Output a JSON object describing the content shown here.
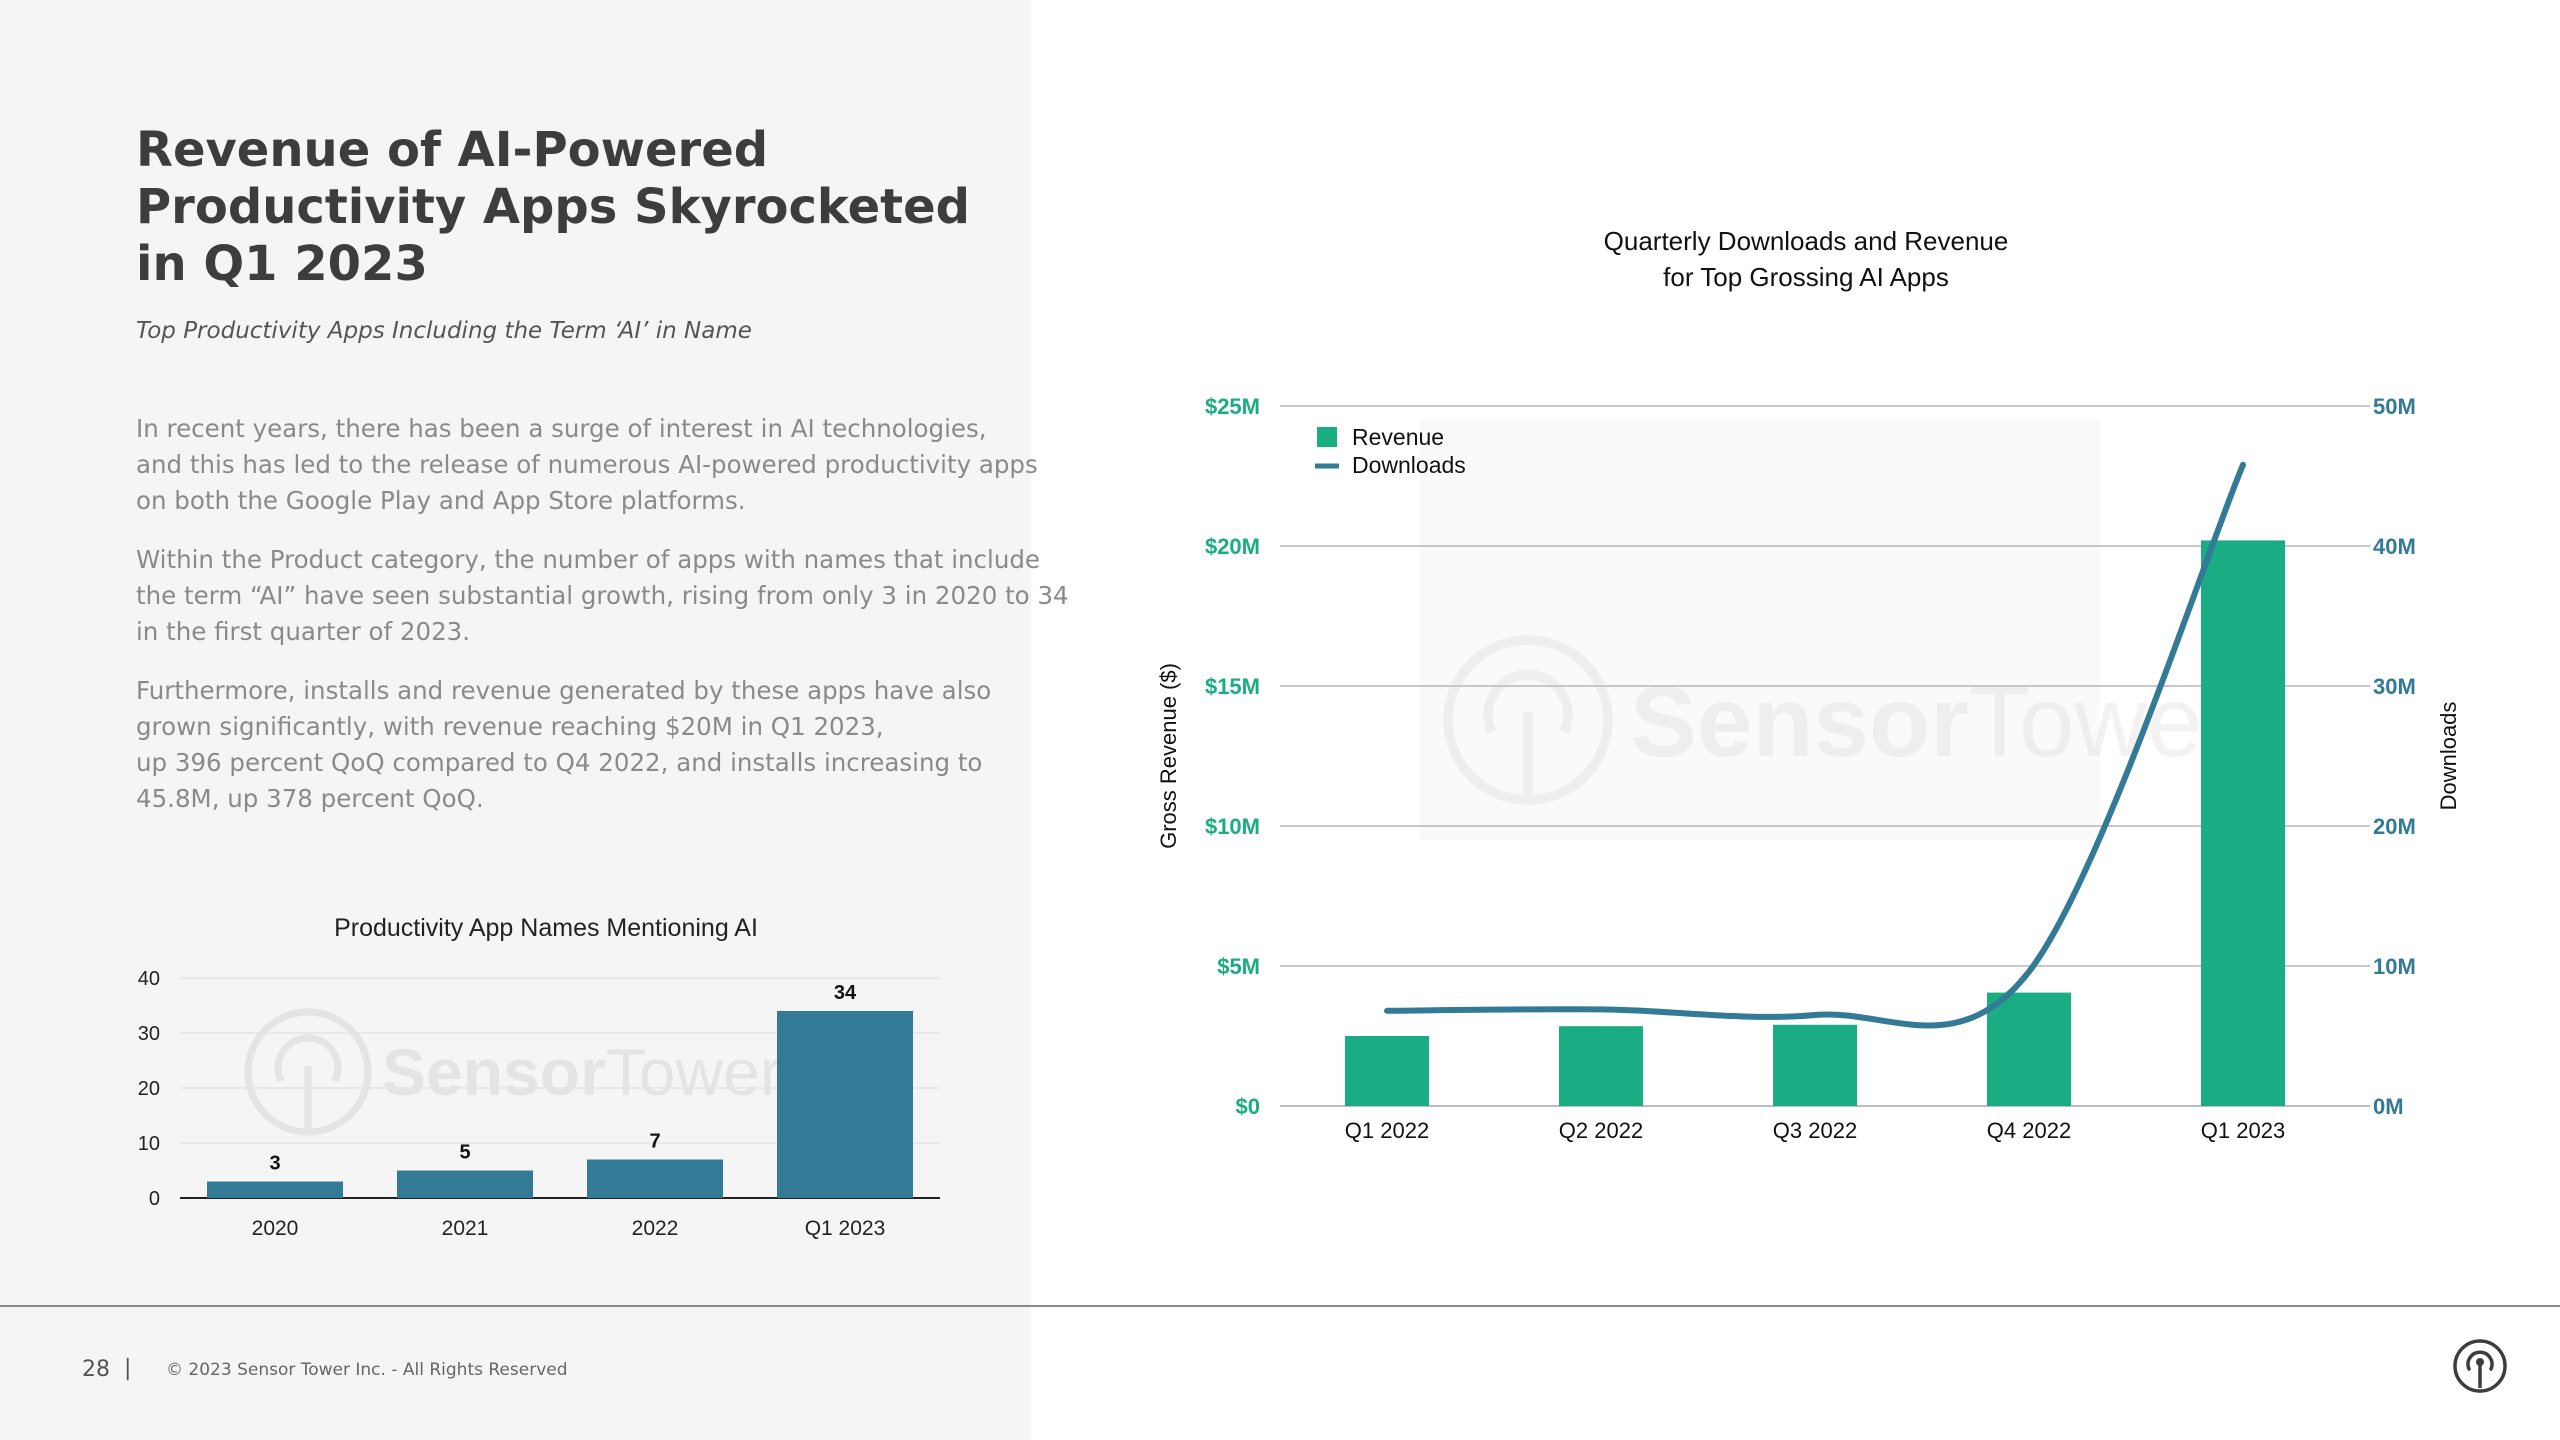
{
  "colors": {
    "accent_green": "#1aad84",
    "accent_blue": "#327a96",
    "text_dark": "#3d3d3d",
    "text_grey": "#8a8a8a"
  },
  "header": {
    "title_lines": [
      "Revenue of AI-Powered",
      "Productivity Apps Skyrocketed",
      "in Q1 2023"
    ],
    "subtitle": "Top Productivity Apps Including the Term ‘AI’ in Name"
  },
  "body": {
    "paragraphs": [
      [
        "In recent years, there has been a surge of interest in AI technologies,",
        "and this has led to the release of numerous AI-powered productivity apps",
        "on both the Google Play and App Store platforms."
      ],
      [
        "Within the Product category, the number of apps with names that include",
        "the term “AI” have seen substantial growth, rising from only 3 in 2020 to 34",
        "in the first quarter of 2023."
      ],
      [
        "Furthermore, installs and revenue generated by these apps have also",
        "grown significantly, with revenue reaching $20M in Q1 2023,",
        "up 396 percent QoQ compared to Q4 2022, and installs increasing to",
        "45.8M, up 378 percent QoQ."
      ]
    ]
  },
  "watermark": {
    "text_bold": "Sensor",
    "text_light": "Tower",
    "icon": "sensor-tower-logo-icon"
  },
  "chart_data": [
    {
      "type": "bar",
      "title": "Productivity App Names Mentioning AI",
      "categories": [
        "2020",
        "2021",
        "2022",
        "Q1 2023"
      ],
      "values": [
        3,
        5,
        7,
        34
      ],
      "data_labels": [
        "3",
        "5",
        "7",
        "34"
      ],
      "ylim": [
        0,
        40
      ],
      "yticks": [
        0,
        10,
        20,
        30,
        40
      ],
      "grid": true,
      "color": "#327a96"
    },
    {
      "type": "bar",
      "title_lines": [
        "Quarterly Downloads and Revenue",
        "for Top Grossing AI Apps"
      ],
      "categories": [
        "Q1 2022",
        "Q2 2022",
        "Q3 2022",
        "Q4 2022",
        "Q1 2023"
      ],
      "series": [
        {
          "name": "Revenue",
          "type": "bar",
          "axis": "left",
          "values": [
            2.5,
            2.85,
            2.9,
            4.05,
            20.2
          ],
          "unit": "$M",
          "color": "#1aad84"
        },
        {
          "name": "Downloads",
          "type": "line",
          "axis": "right",
          "values": [
            6.8,
            6.9,
            6.5,
            9.6,
            45.8
          ],
          "unit": "M",
          "color": "#327a96"
        }
      ],
      "ylabel_left": "Gross Revenue ($)",
      "ylabel_right": "Downloads",
      "ylim_left": [
        0,
        25
      ],
      "ylim_right": [
        0,
        50
      ],
      "yticks_left": [
        "$0",
        "$5M",
        "$10M",
        "$15M",
        "$20M",
        "$25M"
      ],
      "yticks_right": [
        "0M",
        "10M",
        "20M",
        "30M",
        "40M",
        "50M"
      ],
      "grid": true,
      "legend_position": "top-left"
    }
  ],
  "footer": {
    "page_number": "28",
    "separator": "|",
    "copyright": "© 2023 Sensor Tower Inc. - All Rights Reserved",
    "logo_icon": "sensor-tower-logo-icon"
  }
}
